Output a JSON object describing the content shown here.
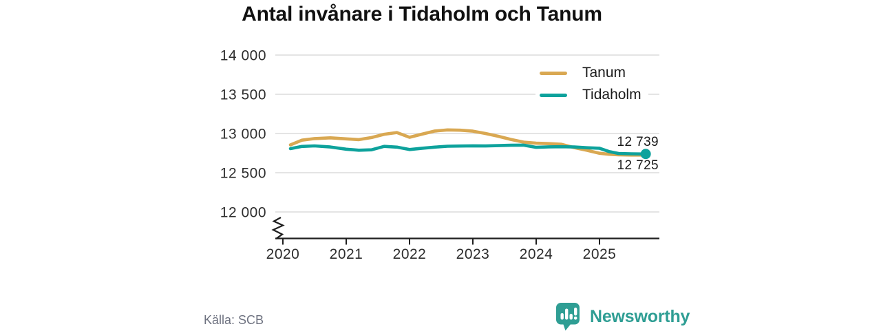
{
  "title": "Antal invånare i Tidaholm och Tanum",
  "colors": {
    "tanum": "#D9A852",
    "tidaholm": "#0DA29C",
    "brand_teal": "#2F9E94",
    "grid_line": "#DCDCDC",
    "axis_line": "#1F1F1F",
    "tick_text": "#2E2E2E",
    "source_text": "#6E7280",
    "background": "#FFFFFF"
  },
  "chart_data": {
    "type": "line",
    "title": "Antal invånare i Tidaholm och Tanum",
    "xlabel": "",
    "ylabel": "",
    "grid": "horizontal",
    "legend_position": "top-right",
    "axis_break": true,
    "y_display_range": [
      12000,
      14000
    ],
    "x_ticks": {
      "values": [
        2020,
        2021,
        2022,
        2023,
        2024,
        2025
      ],
      "labels": [
        "2020",
        "2021",
        "2022",
        "2023",
        "2024",
        "2025"
      ]
    },
    "y_ticks": {
      "values": [
        14000,
        13500,
        13000,
        12500,
        12000
      ],
      "labels": [
        "14 000",
        "13 500",
        "13 000",
        "12 500",
        "12 000"
      ]
    },
    "x_years": [
      2020.12,
      2020.3,
      2020.5,
      2020.75,
      2021.0,
      2021.2,
      2021.4,
      2021.6,
      2021.8,
      2022.0,
      2022.2,
      2022.4,
      2022.6,
      2022.8,
      2023.0,
      2023.2,
      2023.4,
      2023.6,
      2023.8,
      2024.0,
      2024.2,
      2024.4,
      2024.6,
      2024.8,
      2025.0,
      2025.15,
      2025.3,
      2025.5,
      2025.73
    ],
    "series": [
      {
        "name": "Tanum",
        "color": "#D9A852",
        "end_label": "12 725",
        "end_dot": false,
        "values": [
          12855,
          12915,
          12935,
          12945,
          12932,
          12922,
          12948,
          12990,
          13012,
          12952,
          12992,
          13032,
          13046,
          13042,
          13030,
          13000,
          12965,
          12925,
          12890,
          12876,
          12871,
          12862,
          12820,
          12786,
          12748,
          12735,
          12728,
          12725,
          12725
        ]
      },
      {
        "name": "Tidaholm",
        "color": "#0DA29C",
        "end_label": "12 739",
        "end_dot": true,
        "values": [
          12807,
          12835,
          12842,
          12828,
          12800,
          12787,
          12792,
          12836,
          12826,
          12796,
          12812,
          12826,
          12838,
          12840,
          12843,
          12841,
          12846,
          12850,
          12852,
          12824,
          12830,
          12832,
          12828,
          12818,
          12812,
          12770,
          12746,
          12741,
          12739
        ]
      }
    ]
  },
  "end_labels": {
    "tidaholm": "12 739",
    "tanum": "12 725"
  },
  "footer": {
    "source": "Källa: SCB",
    "brand": "Newsworthy"
  }
}
